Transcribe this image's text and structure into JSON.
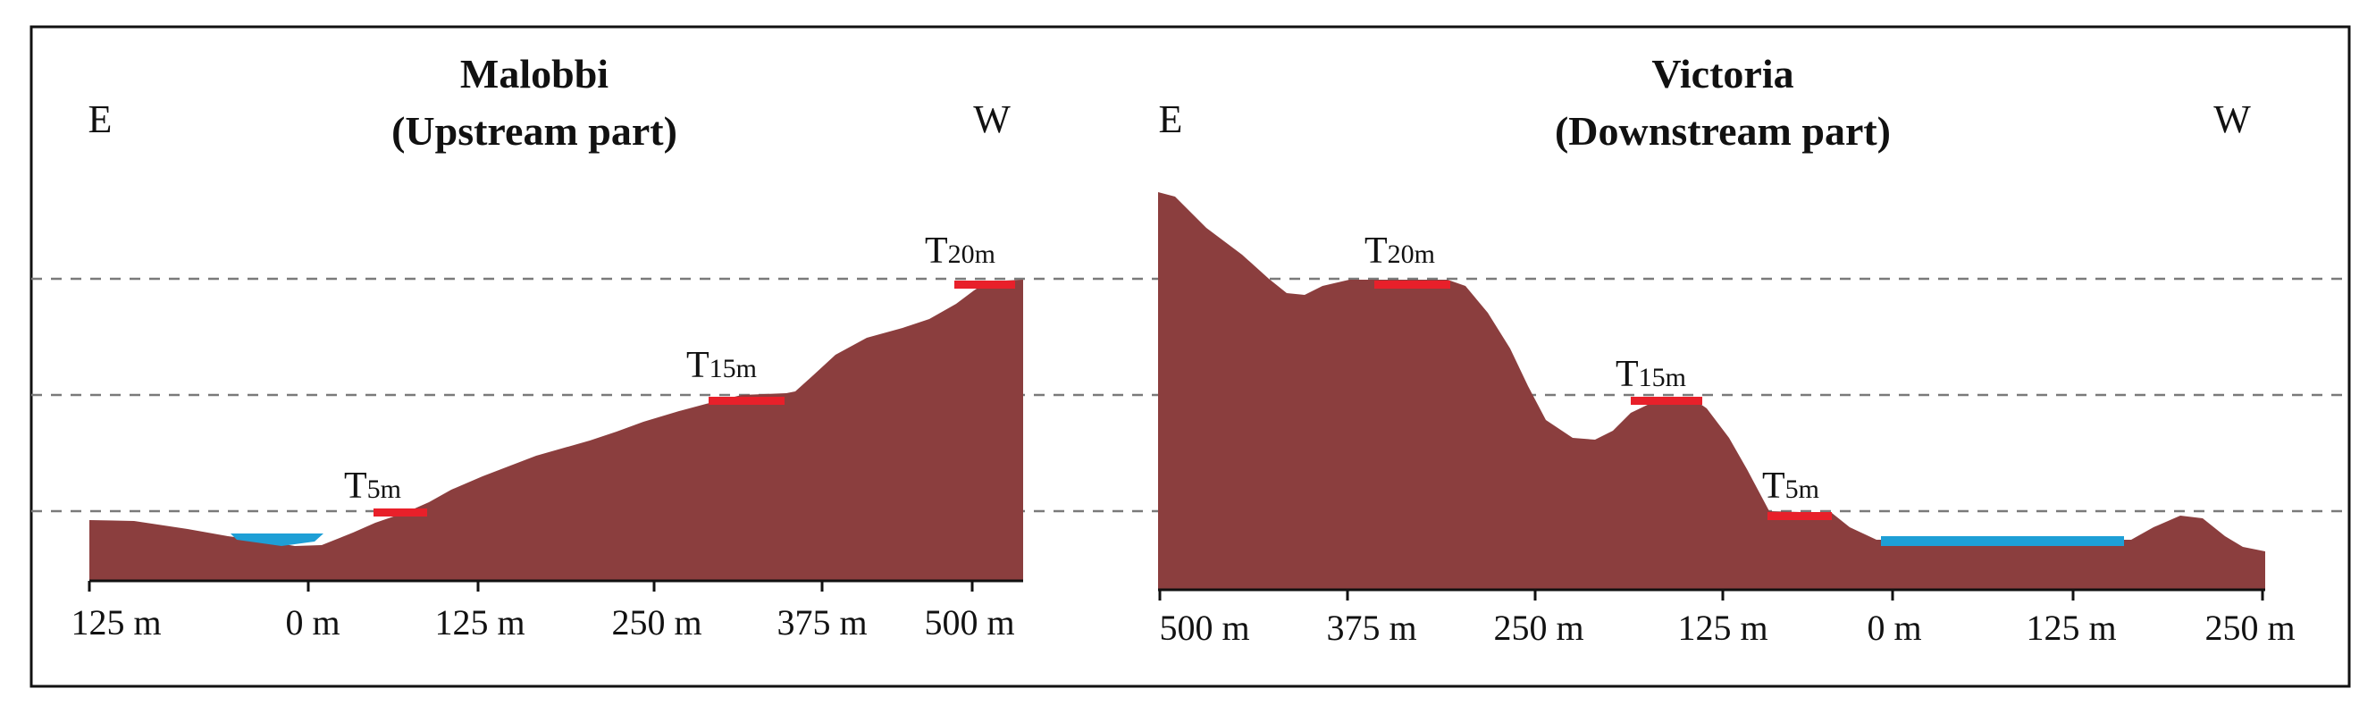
{
  "colors": {
    "terrain": "#8B3E3E",
    "terrace": "#E8202A",
    "river": "#1E9FD6",
    "level_line": "#7a7a7a",
    "axis": "#111111"
  },
  "panels": [
    {
      "title_line1": "Malobbi",
      "title_line2": "(Upstream part)",
      "dir_left": "E",
      "dir_right": "W",
      "ticks": [
        "125 m",
        "0 m",
        "125 m",
        "250 m",
        "375 m",
        "500 m"
      ],
      "terraces": [
        {
          "T": "T",
          "sub": "5m",
          "level_m": 5
        },
        {
          "T": "T",
          "sub": "15m",
          "level_m": 15
        },
        {
          "T": "T",
          "sub": "20m",
          "level_m": 20
        }
      ]
    },
    {
      "title_line1": "Victoria",
      "title_line2": "(Downstream part)",
      "dir_left": "E",
      "dir_right": "W",
      "ticks": [
        "500 m",
        "375 m",
        "250 m",
        "125 m",
        "0 m",
        "125 m",
        "250 m"
      ],
      "terraces": [
        {
          "T": "T",
          "sub": "20m",
          "level_m": 20
        },
        {
          "T": "T",
          "sub": "15m",
          "level_m": 15
        },
        {
          "T": "T",
          "sub": "5m",
          "level_m": 5
        }
      ]
    }
  ]
}
